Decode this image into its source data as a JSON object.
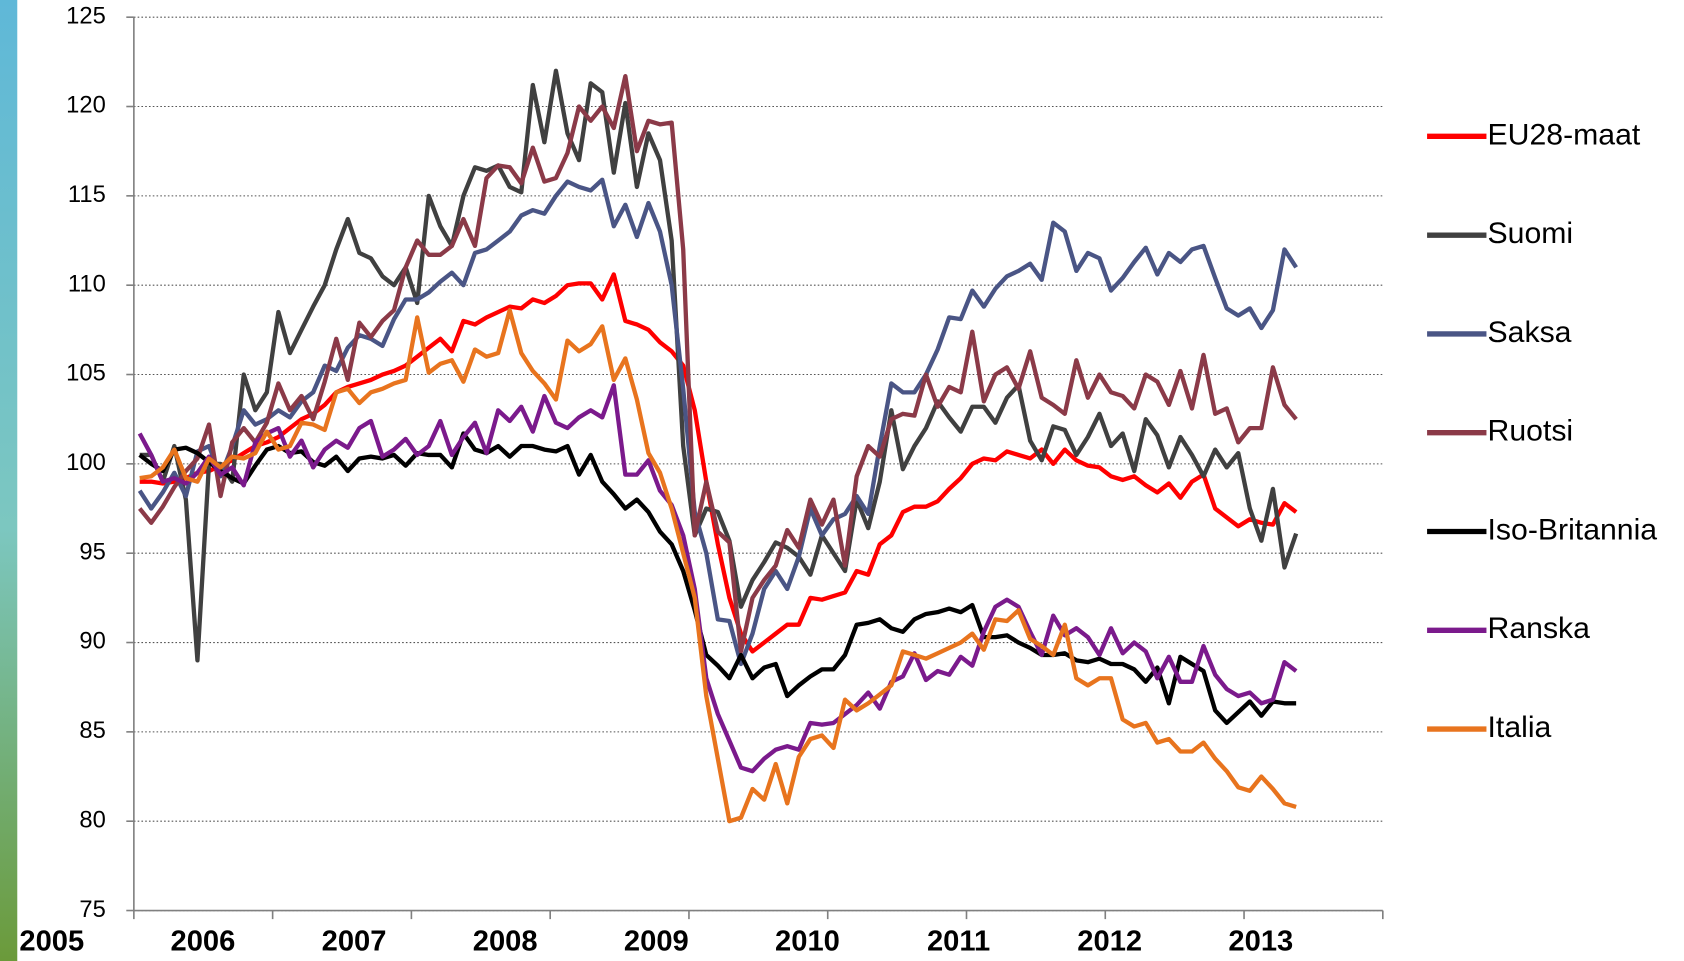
{
  "chart_data": {
    "type": "line",
    "xlim": [
      2005,
      2014
    ],
    "xticks": [
      2005,
      2006,
      2007,
      2008,
      2009,
      2010,
      2011,
      2012,
      2013
    ],
    "ylim": [
      75,
      125
    ],
    "yticks": [
      75,
      80,
      85,
      90,
      95,
      100,
      105,
      110,
      115,
      120,
      125
    ],
    "grid": true,
    "series": [
      {
        "name": "EU28-maat",
        "color": "#ff0000",
        "values": [
          99,
          99,
          98.9,
          99,
          99.2,
          99.5,
          99.6,
          99.9,
          100.2,
          100.6,
          101,
          101.2,
          101.5,
          102,
          102.5,
          102.8,
          103.3,
          104,
          104.3,
          104.5,
          104.7,
          105,
          105.2,
          105.5,
          106,
          106.5,
          107,
          106.3,
          108,
          107.8,
          108.2,
          108.5,
          108.8,
          108.7,
          109.2,
          109,
          109.4,
          110,
          110.1,
          110.1,
          109.2,
          110.6,
          108,
          107.8,
          107.5,
          106.8,
          106.3,
          105.5,
          103,
          99,
          95.5,
          92.5,
          90.5,
          89.5,
          90,
          90.5,
          91,
          91,
          92.5,
          92.4,
          92.6,
          92.8,
          94,
          93.8,
          95.5,
          96,
          97.3,
          97.6,
          97.6,
          97.9,
          98.6,
          99.2,
          100,
          100.3,
          100.2,
          100.7,
          100.5,
          100.3,
          100.8,
          100,
          100.8,
          100.2,
          99.9,
          99.8,
          99.3,
          99.1,
          99.3,
          98.8,
          98.4,
          98.9,
          98.1,
          99,
          99.4,
          97.5,
          97,
          96.5,
          96.9,
          96.7,
          96.6,
          97.8,
          97.3
        ]
      },
      {
        "name": "Suomi",
        "color": "#404040",
        "values": [
          100.5,
          100.5,
          99,
          101,
          98,
          89,
          100,
          100,
          99,
          105,
          103,
          104,
          108.5,
          106.2,
          107.5,
          108.8,
          110,
          112,
          113.7,
          111.8,
          111.5,
          110.5,
          110,
          111,
          109,
          115,
          113.3,
          112.2,
          115,
          116.6,
          116.4,
          116.7,
          115.5,
          115.2,
          121.2,
          118,
          122,
          118.5,
          117,
          121.3,
          120.8,
          116.3,
          120.2,
          115.5,
          118.5,
          117,
          112.5,
          101,
          96,
          97.5,
          97.3,
          95.7,
          92,
          93.5,
          94.5,
          95.6,
          95.3,
          94.8,
          93.8,
          96,
          95,
          94,
          98,
          96.4,
          99,
          103,
          99.7,
          101,
          102,
          103.5,
          102.6,
          101.8,
          103.2,
          103.2,
          102.3,
          103.7,
          104.4,
          101.3,
          100.2,
          102.1,
          101.9,
          100.5,
          101.5,
          102.8,
          101,
          101.7,
          99.6,
          102.5,
          101.6,
          99.8,
          101.5,
          100.5,
          99.3,
          100.8,
          99.8,
          100.6,
          97.5,
          95.7,
          98.6,
          94.2,
          96.1
        ]
      },
      {
        "name": "Saksa",
        "color": "#4a5585",
        "values": [
          98.5,
          97.5,
          98.4,
          99.5,
          98.2,
          100.7,
          101,
          99.3,
          101,
          103,
          102.2,
          102.5,
          103,
          102.6,
          103.5,
          104,
          105.5,
          105.2,
          106.5,
          107.2,
          107,
          106.6,
          108.1,
          109.2,
          109.2,
          109.6,
          110.2,
          110.7,
          110,
          111.8,
          112,
          112.5,
          113,
          113.9,
          114.2,
          114,
          115,
          115.8,
          115.5,
          115.3,
          115.9,
          113.3,
          114.5,
          112.7,
          114.6,
          113,
          110,
          104.2,
          97.3,
          95,
          91.3,
          91.2,
          88.8,
          90.5,
          93,
          94,
          93,
          94.8,
          97.5,
          96,
          96.9,
          97.2,
          98.2,
          97.2,
          101,
          104.5,
          104,
          104,
          105,
          106.4,
          108.2,
          108.1,
          109.7,
          108.8,
          109.8,
          110.5,
          110.8,
          111.2,
          110.3,
          113.5,
          113,
          110.8,
          111.8,
          111.5,
          109.7,
          110.4,
          111.3,
          112.1,
          110.6,
          111.8,
          111.3,
          112,
          112.2,
          110.4,
          108.7,
          108.3,
          108.7,
          107.6,
          108.6,
          112,
          111
        ]
      },
      {
        "name": "Ruotsi",
        "color": "#8b3a48",
        "values": [
          97.5,
          96.7,
          97.6,
          98.7,
          99.6,
          100.3,
          102.2,
          98.2,
          101.2,
          102,
          101.2,
          102.3,
          104.5,
          103,
          103.8,
          102.5,
          104.6,
          107,
          104.7,
          107.9,
          107.1,
          108,
          108.6,
          111,
          112.5,
          111.7,
          111.7,
          112.2,
          113.7,
          112.2,
          116,
          116.7,
          116.6,
          115.7,
          117.7,
          115.8,
          116,
          117.4,
          120,
          119.2,
          120,
          118.8,
          121.7,
          117.5,
          119.2,
          119,
          119.1,
          112,
          96,
          99,
          96.2,
          95.6,
          89.5,
          92.5,
          93.5,
          94.3,
          96.3,
          95.3,
          98,
          96.6,
          98,
          94.3,
          99.3,
          101,
          100.4,
          102.5,
          102.8,
          102.7,
          105,
          103.2,
          104.3,
          104,
          107.4,
          103.5,
          105,
          105.4,
          104.2,
          106.3,
          103.7,
          103.3,
          102.8,
          105.8,
          103.7,
          105,
          104,
          103.8,
          103.1,
          105,
          104.6,
          103.3,
          105.2,
          103.1,
          106.1,
          102.8,
          103.1,
          101.2,
          102,
          102,
          105.4,
          103.3,
          102.5
        ]
      },
      {
        "name": "Iso-Britannia",
        "color": "#000000",
        "values": [
          100.5,
          100,
          99.6,
          100.8,
          100.9,
          100.6,
          100.1,
          99.6,
          99.2,
          98.9,
          99.9,
          100.8,
          101,
          100.6,
          100.7,
          100.1,
          99.9,
          100.4,
          99.6,
          100.3,
          100.4,
          100.3,
          100.5,
          99.9,
          100.6,
          100.5,
          100.5,
          99.8,
          101.7,
          100.8,
          100.6,
          101,
          100.4,
          101,
          101,
          100.8,
          100.7,
          101,
          99.4,
          100.5,
          99,
          98.3,
          97.5,
          98,
          97.3,
          96.2,
          95.5,
          94,
          91.8,
          89.3,
          88.7,
          88,
          89.3,
          88,
          88.6,
          88.8,
          87,
          87.6,
          88.1,
          88.5,
          88.5,
          89.3,
          91,
          91.1,
          91.3,
          90.8,
          90.6,
          91.3,
          91.6,
          91.7,
          91.9,
          91.7,
          92.1,
          90.3,
          90.3,
          90.4,
          90,
          89.7,
          89.3,
          89.3,
          89.4,
          89,
          88.9,
          89.1,
          88.8,
          88.8,
          88.5,
          87.8,
          88.6,
          86.6,
          89.2,
          88.8,
          88.4,
          86.2,
          85.5,
          86.1,
          86.7,
          85.9,
          86.7,
          86.6,
          86.6
        ]
      },
      {
        "name": "Ranska",
        "color": "#7b1a8c",
        "values": [
          101.7,
          100.5,
          99,
          99.2,
          98.9,
          99.5,
          100.4,
          99.4,
          99.8,
          98.8,
          101.2,
          101.7,
          102,
          100.4,
          101.3,
          99.8,
          100.8,
          101.3,
          100.9,
          102,
          102.4,
          100.4,
          100.8,
          101.4,
          100.5,
          101,
          102.4,
          100.5,
          101.5,
          102.3,
          100.6,
          103,
          102.4,
          103.2,
          101.8,
          103.8,
          102.3,
          102,
          102.6,
          103,
          102.6,
          104.4,
          99.4,
          99.4,
          100.2,
          98.5,
          97.7,
          96,
          93,
          88,
          86,
          84.5,
          83,
          82.8,
          83.5,
          84,
          84.2,
          84,
          85.5,
          85.4,
          85.5,
          86,
          86.5,
          87.2,
          86.3,
          87.8,
          88.1,
          89.4,
          87.9,
          88.4,
          88.2,
          89.2,
          88.7,
          90.6,
          92,
          92.4,
          92,
          90.6,
          89.3,
          91.5,
          90.4,
          90.8,
          90.3,
          89.3,
          90.8,
          89.4,
          90,
          89.5,
          88,
          89.2,
          87.8,
          87.8,
          89.8,
          88.2,
          87.4,
          87,
          87.2,
          86.6,
          86.8,
          88.9,
          88.4
        ]
      },
      {
        "name": "Italia",
        "color": "#e8741e",
        "values": [
          99.2,
          99.3,
          99.8,
          100.8,
          99.2,
          99,
          100.3,
          99.8,
          100.4,
          100.3,
          100.6,
          101.8,
          100.8,
          101,
          102.3,
          102.2,
          101.9,
          104,
          104.2,
          103.4,
          104,
          104.2,
          104.5,
          104.7,
          108.2,
          105.1,
          105.6,
          105.8,
          104.6,
          106.4,
          106,
          106.2,
          108.6,
          106.2,
          105.2,
          104.5,
          103.6,
          106.9,
          106.3,
          106.7,
          107.7,
          104.7,
          105.9,
          103.6,
          100.6,
          99.5,
          97.5,
          95,
          92.5,
          87,
          83.5,
          80,
          80.2,
          81.8,
          81.2,
          83.2,
          81,
          83.6,
          84.6,
          84.8,
          84.1,
          86.8,
          86.2,
          86.6,
          87.1,
          87.6,
          89.5,
          89.3,
          89.1,
          89.4,
          89.7,
          90,
          90.5,
          89.6,
          91.3,
          91.2,
          91.8,
          90.2,
          89.8,
          89.3,
          91,
          88,
          87.6,
          88,
          88,
          85.7,
          85.3,
          85.5,
          84.4,
          84.6,
          83.9,
          83.9,
          84.4,
          83.5,
          82.8,
          81.9,
          81.7,
          82.5,
          81.8,
          81,
          80.8
        ]
      }
    ]
  }
}
